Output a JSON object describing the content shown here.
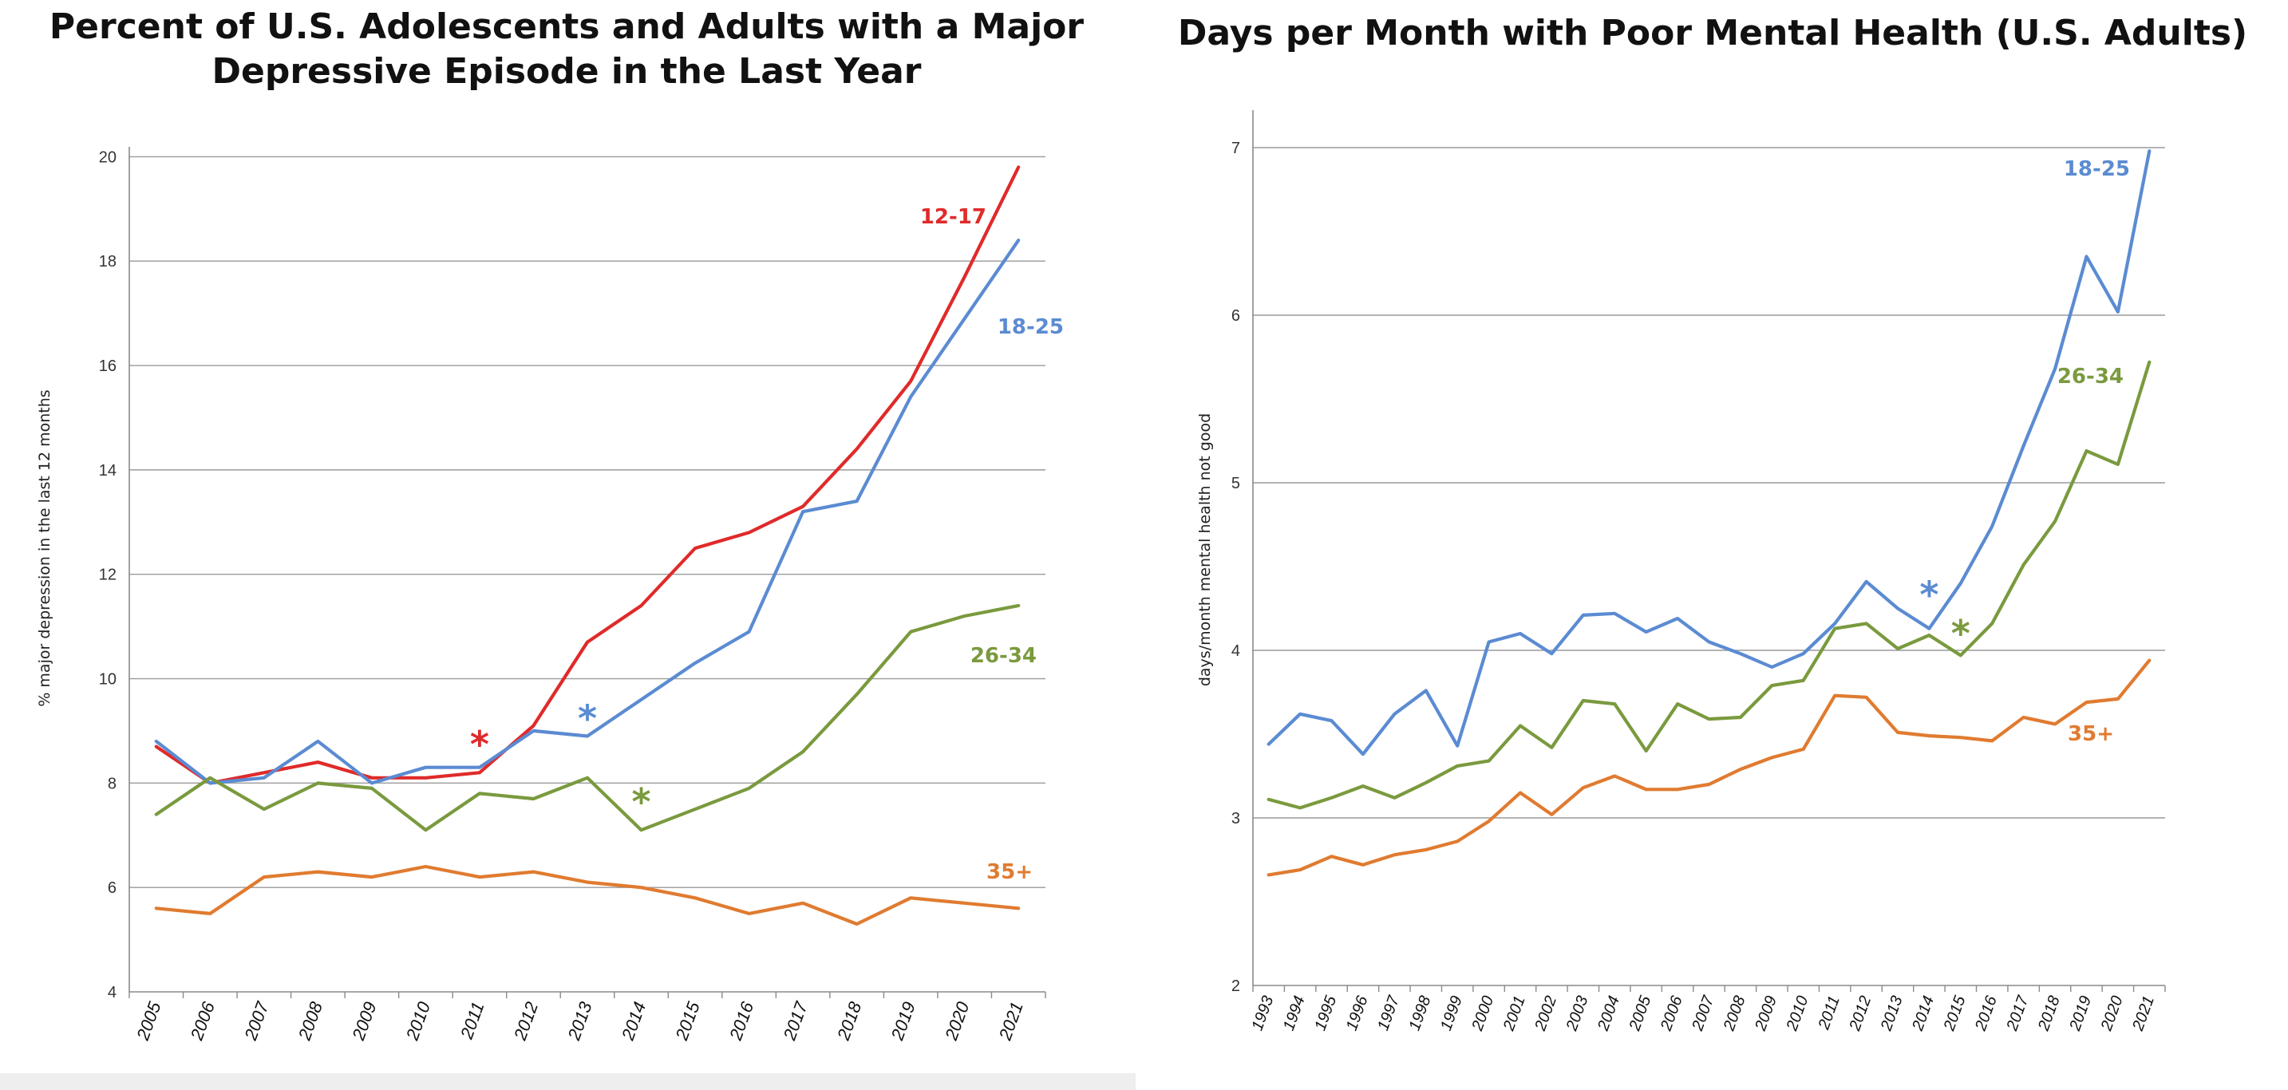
{
  "chart_data": [
    {
      "type": "line",
      "title": "Percent of U.S. Adolescents and Adults with a Major Depressive Episode in the Last Year",
      "xlabel": "",
      "ylabel": "% major depression in the last 12 months",
      "ylim": [
        4,
        21
      ],
      "yticks": [
        4,
        6,
        8,
        10,
        12,
        14,
        16,
        18,
        20
      ],
      "grid": true,
      "x": [
        "2005",
        "2006",
        "2007",
        "2008",
        "2009",
        "2010",
        "2011",
        "2012",
        "2013",
        "2014",
        "2015",
        "2016",
        "2017",
        "2018",
        "2019",
        "2020",
        "2021"
      ],
      "series": [
        {
          "name": "12-17",
          "color": "#e02a2a",
          "values": [
            8.7,
            8.0,
            8.2,
            8.4,
            8.1,
            8.1,
            8.2,
            9.1,
            10.7,
            11.4,
            12.5,
            12.8,
            13.3,
            14.4,
            15.7,
            17.7,
            19.8
          ]
        },
        {
          "name": "18-25",
          "color": "#5b8bd2",
          "values": [
            8.8,
            8.0,
            8.1,
            8.8,
            8.0,
            8.3,
            8.3,
            9.0,
            8.9,
            9.6,
            10.3,
            10.9,
            13.2,
            13.4,
            15.4,
            16.9,
            18.4
          ]
        },
        {
          "name": "26-34",
          "color": "#7a9a3e",
          "values": [
            7.4,
            8.1,
            7.5,
            8.0,
            7.9,
            7.1,
            7.8,
            7.7,
            8.1,
            7.1,
            7.5,
            7.9,
            8.6,
            9.7,
            10.9,
            11.2,
            11.4
          ]
        },
        {
          "name": "35+",
          "color": "#e07b30",
          "values": [
            5.6,
            5.5,
            6.2,
            6.3,
            6.2,
            6.4,
            6.2,
            6.3,
            6.1,
            6.0,
            5.8,
            5.5,
            5.7,
            5.3,
            5.8,
            5.7,
            5.6
          ]
        }
      ],
      "annotations": [
        {
          "text": "*",
          "color": "#e02a2a",
          "x": "2011",
          "y": 8.8
        },
        {
          "text": "*",
          "color": "#5b8bd2",
          "x": "2013",
          "y": 9.3
        },
        {
          "text": "*",
          "color": "#7a9a3e",
          "x": "2014",
          "y": 7.7
        }
      ]
    },
    {
      "type": "line",
      "title": "Days per Month with Poor Mental Health (U.S. Adults)",
      "xlabel": "",
      "ylabel": "days/month mental health not good",
      "ylim": [
        2,
        7.2
      ],
      "yticks": [
        2,
        3,
        4,
        5,
        6,
        7
      ],
      "grid": true,
      "x": [
        "1993",
        "1994",
        "1995",
        "1996",
        "1997",
        "1998",
        "1999",
        "2000",
        "2001",
        "2002",
        "2003",
        "2004",
        "2005",
        "2006",
        "2007",
        "2008",
        "2009",
        "2010",
        "2011",
        "2012",
        "2013",
        "2014",
        "2015",
        "2016",
        "2017",
        "2018",
        "2019",
        "2020",
        "2021"
      ],
      "series": [
        {
          "name": "18-25",
          "color": "#5b8bd2",
          "values": [
            3.44,
            3.62,
            3.58,
            3.38,
            3.62,
            3.76,
            3.43,
            4.05,
            4.1,
            3.98,
            4.21,
            4.22,
            4.11,
            4.19,
            4.05,
            3.98,
            3.9,
            3.98,
            4.16,
            4.41,
            4.25,
            4.13,
            4.4,
            4.74,
            5.22,
            5.68,
            6.35,
            6.02,
            6.98
          ]
        },
        {
          "name": "26-34",
          "color": "#7a9a3e",
          "values": [
            3.11,
            3.06,
            3.12,
            3.19,
            3.12,
            3.21,
            3.31,
            3.34,
            3.55,
            3.42,
            3.7,
            3.68,
            3.4,
            3.68,
            3.59,
            3.6,
            3.79,
            3.82,
            4.13,
            4.16,
            4.01,
            4.09,
            3.97,
            4.16,
            4.51,
            4.77,
            5.19,
            5.11,
            5.72
          ]
        },
        {
          "name": "35+",
          "color": "#e07b30",
          "values": [
            2.66,
            2.69,
            2.77,
            2.72,
            2.78,
            2.81,
            2.86,
            2.98,
            3.15,
            3.02,
            3.18,
            3.25,
            3.17,
            3.17,
            3.2,
            3.29,
            3.36,
            3.41,
            3.73,
            3.72,
            3.51,
            3.49,
            3.48,
            3.46,
            3.6,
            3.56,
            3.69,
            3.71,
            3.94
          ]
        }
      ],
      "annotations": [
        {
          "text": "*",
          "color": "#5b8bd2",
          "x": "2014",
          "y": 4.35
        },
        {
          "text": "*",
          "color": "#7a9a3e",
          "x": "2015",
          "y": 4.12
        }
      ]
    }
  ]
}
